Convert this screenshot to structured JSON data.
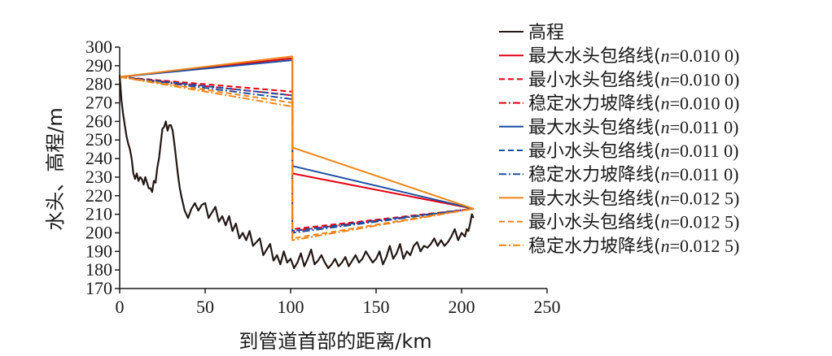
{
  "chart_data": {
    "type": "line",
    "xlabel": "到管道首部的距离/km",
    "ylabel": "水头、高程/m",
    "xlim": [
      0,
      250
    ],
    "ylim": [
      170,
      300
    ],
    "xticks": [
      0,
      50,
      100,
      150,
      200,
      250
    ],
    "yticks": [
      170,
      180,
      190,
      200,
      210,
      220,
      230,
      240,
      250,
      260,
      270,
      280,
      290,
      300
    ],
    "grid": false,
    "legend_position": "right",
    "series": [
      {
        "name": "高程",
        "color": "#231815",
        "dash": "solid",
        "x": [
          0,
          0.5,
          1,
          2,
          3,
          4,
          5,
          6,
          7,
          8,
          9,
          10,
          11,
          12,
          13,
          14,
          15,
          16,
          17,
          18,
          19,
          20,
          21,
          22,
          23,
          24,
          25,
          26,
          27,
          28,
          29,
          30,
          31,
          32,
          33,
          34,
          35,
          36,
          37,
          38,
          39,
          40,
          42,
          44,
          46,
          48,
          50,
          52,
          54,
          56,
          58,
          60,
          62,
          64,
          66,
          68,
          70,
          72,
          74,
          76,
          78,
          80,
          82,
          84,
          86,
          88,
          90,
          92,
          94,
          96,
          98,
          100,
          102,
          104,
          106,
          108,
          110,
          112,
          114,
          116,
          118,
          120,
          122,
          124,
          126,
          128,
          130,
          132,
          134,
          136,
          138,
          140,
          142,
          144,
          146,
          148,
          150,
          152,
          154,
          156,
          158,
          160,
          162,
          164,
          166,
          168,
          170,
          172,
          174,
          176,
          178,
          180,
          182,
          184,
          186,
          188,
          190,
          192,
          194,
          196,
          198,
          200,
          202,
          203,
          204,
          205,
          206,
          207
        ],
        "values": [
          285,
          278,
          272,
          264,
          258,
          252,
          248,
          245,
          240,
          232,
          229,
          232,
          228,
          230,
          229,
          226,
          230,
          227,
          224,
          224,
          222,
          228,
          227,
          235,
          240,
          248,
          256,
          257,
          260,
          255,
          258,
          258,
          255,
          248,
          240,
          232,
          225,
          220,
          216,
          212,
          210,
          208,
          213,
          216,
          212,
          215,
          216,
          208,
          211,
          214,
          206,
          209,
          204,
          209,
          201,
          205,
          197,
          200,
          196,
          201,
          193,
          195,
          197,
          188,
          191,
          194,
          185,
          188,
          183,
          190,
          184,
          186,
          181,
          184,
          189,
          182,
          186,
          191,
          183,
          185,
          188,
          184,
          181,
          183,
          186,
          182,
          184,
          187,
          182,
          185,
          188,
          184,
          186,
          190,
          187,
          184,
          186,
          190,
          183,
          187,
          193,
          186,
          189,
          194,
          186,
          190,
          188,
          193,
          195,
          190,
          193,
          192,
          194,
          197,
          193,
          196,
          193,
          195,
          198,
          202,
          196,
          200,
          198,
          202,
          201,
          205,
          210,
          208
        ]
      },
      {
        "name": "最大水头包络线(n=0.010 0)",
        "color": "#e60012",
        "dash": "solid",
        "x": [
          0,
          101,
          101,
          207
        ],
        "values": [
          284,
          294,
          232,
          213
        ]
      },
      {
        "name": "最小水头包络线(n=0.010 0)",
        "color": "#e60012",
        "dash": "dashed",
        "x": [
          0,
          101,
          101,
          207
        ],
        "values": [
          284,
          276,
          202,
          213
        ]
      },
      {
        "name": "稳定水力坡降线(n=0.010 0)",
        "color": "#e60012",
        "dash": "dashdot",
        "x": [
          0,
          101,
          101,
          207
        ],
        "values": [
          284,
          274,
          201,
          213
        ]
      },
      {
        "name": "最大水头包络线(n=0.011 0)",
        "color": "#1d4ea2",
        "dash": "solid",
        "x": [
          0,
          101,
          101,
          207
        ],
        "values": [
          284,
          293,
          236,
          213
        ]
      },
      {
        "name": "最小水头包络线(n=0.011 0)",
        "color": "#1d4ea2",
        "dash": "dashed",
        "x": [
          0,
          101,
          101,
          207
        ],
        "values": [
          284,
          274,
          201,
          213
        ]
      },
      {
        "name": "稳定水力坡降线(n=0.011 0)",
        "color": "#1d4ea2",
        "dash": "dashdot",
        "x": [
          0,
          101,
          101,
          207
        ],
        "values": [
          284,
          272,
          200,
          213
        ]
      },
      {
        "name": "最大水头包络线(n=0.012 5)",
        "color": "#f08519",
        "dash": "solid",
        "x": [
          0,
          101,
          101,
          207
        ],
        "values": [
          284,
          295,
          246,
          213
        ]
      },
      {
        "name": "最小水头包络线(n=0.012 5)",
        "color": "#f08519",
        "dash": "dashed",
        "x": [
          0,
          101,
          101,
          207
        ],
        "values": [
          284,
          270,
          197,
          213
        ]
      },
      {
        "name": "稳定水力坡降线(n=0.012 5)",
        "color": "#f08519",
        "dash": "dashdot",
        "x": [
          0,
          101,
          101,
          207
        ],
        "values": [
          284,
          268,
          196,
          213
        ]
      }
    ]
  }
}
